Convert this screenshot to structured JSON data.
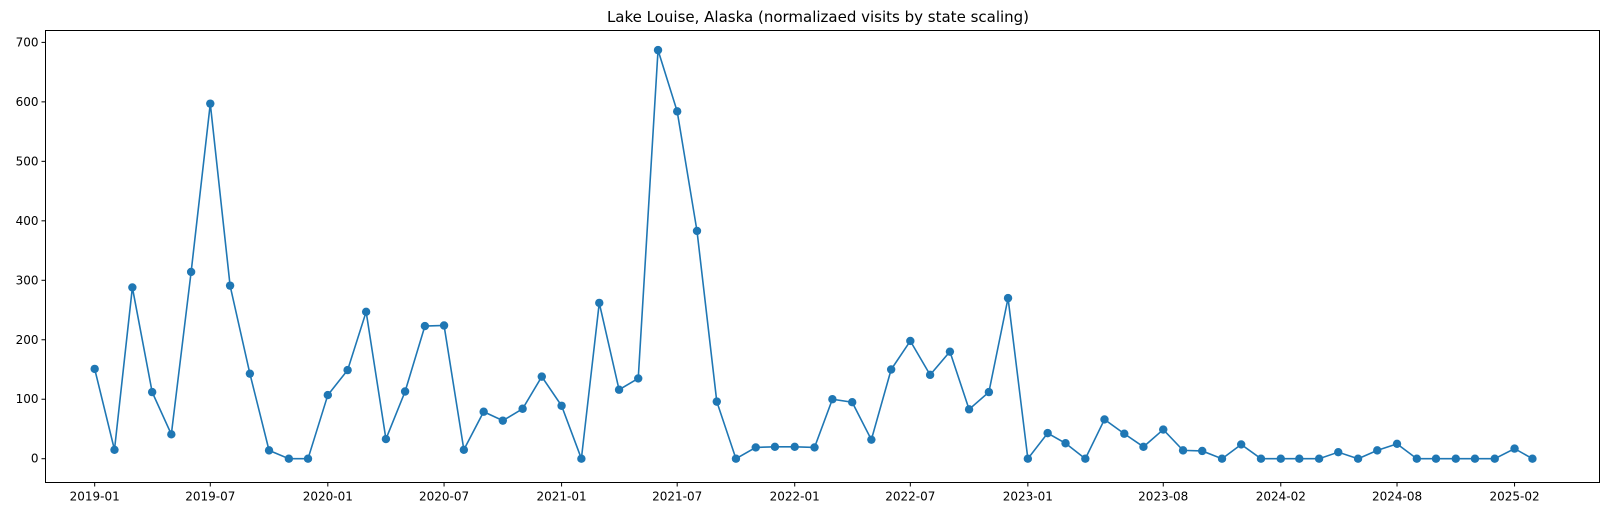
{
  "chart_data": {
    "type": "line",
    "title": "Lake Louise, Alaska (normalizaed visits by state scaling)",
    "xlabel": "",
    "ylabel": "",
    "ylim": [
      -40,
      720
    ],
    "xlim": [
      "2018-10-16",
      "2025-06-14"
    ],
    "grid": false,
    "marker": "circle",
    "color": "#1f77b4",
    "xticks": [
      "2019-01",
      "2019-07",
      "2020-01",
      "2020-07",
      "2021-01",
      "2021-07",
      "2022-01",
      "2022-07",
      "2023-01",
      "2023-08",
      "2024-02",
      "2024-08",
      "2025-02"
    ],
    "yticks": [
      0,
      100,
      200,
      300,
      400,
      500,
      600,
      700
    ],
    "x": [
      "2019-01-01",
      "2019-02-01",
      "2019-03-01",
      "2019-04-01",
      "2019-05-01",
      "2019-06-01",
      "2019-07-01",
      "2019-08-01",
      "2019-09-01",
      "2019-10-01",
      "2019-11-01",
      "2019-12-01",
      "2020-01-01",
      "2020-02-01",
      "2020-03-01",
      "2020-04-01",
      "2020-05-01",
      "2020-06-01",
      "2020-07-01",
      "2020-08-01",
      "2020-09-01",
      "2020-10-01",
      "2020-11-01",
      "2020-12-01",
      "2021-01-01",
      "2021-02-01",
      "2021-03-01",
      "2021-04-01",
      "2021-05-01",
      "2021-06-01",
      "2021-07-01",
      "2021-08-01",
      "2021-09-01",
      "2021-10-01",
      "2021-11-01",
      "2021-12-01",
      "2022-01-01",
      "2022-02-01",
      "2022-03-01",
      "2022-04-01",
      "2022-05-01",
      "2022-06-01",
      "2022-07-01",
      "2022-08-01",
      "2022-09-01",
      "2022-10-01",
      "2022-11-01",
      "2022-12-01",
      "2023-01-01",
      "2023-02-01",
      "2023-03-01",
      "2023-04-01",
      "2023-05-01",
      "2023-06-01",
      "2023-07-01",
      "2023-08-01",
      "2023-09-01",
      "2023-10-01",
      "2023-11-01",
      "2023-12-01",
      "2024-01-01",
      "2024-02-01",
      "2024-03-01",
      "2024-04-01",
      "2024-05-01",
      "2024-06-01",
      "2024-07-01",
      "2024-08-01",
      "2024-09-01",
      "2024-10-01",
      "2024-11-01",
      "2024-12-01",
      "2025-01-01",
      "2025-02-01",
      "2025-03-01"
    ],
    "series": [
      {
        "values": [
          151,
          15,
          288,
          112,
          41,
          314,
          597,
          291,
          143,
          14,
          0,
          0,
          107,
          149,
          247,
          33,
          113,
          223,
          224,
          15,
          79,
          64,
          84,
          138,
          89,
          0,
          262,
          116,
          135,
          687,
          584,
          383,
          96,
          0,
          19,
          20,
          20,
          19,
          100,
          95,
          32,
          150,
          198,
          141,
          180,
          83,
          112,
          270,
          0,
          43,
          26,
          0,
          66,
          42,
          20,
          49,
          14,
          13,
          0,
          24,
          0,
          0,
          0,
          0,
          11,
          0,
          14,
          25,
          0,
          0,
          0,
          0,
          0,
          17,
          0
        ]
      }
    ]
  }
}
